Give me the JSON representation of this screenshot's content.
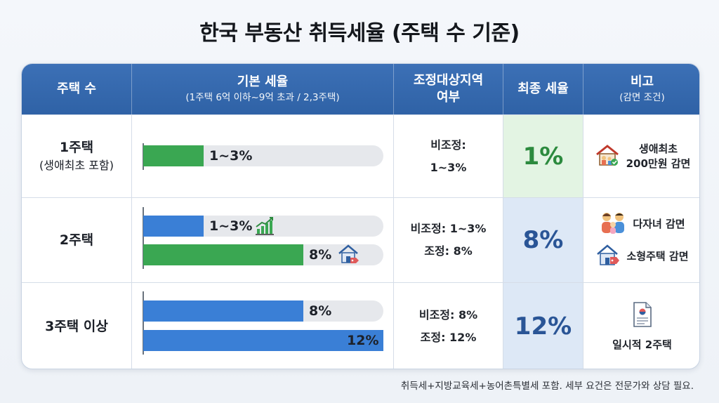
{
  "title": "한국 부동산 취득세율 (주택 수 기준)",
  "header": {
    "col1": "주택 수",
    "col2_main": "기본 세율",
    "col2_sub": "(1주택 6억 이하~9억 초과 / 2,3주택)",
    "col3_line1": "조정대상지역",
    "col3_line2": "여부",
    "col4": "최종 세율",
    "col5_main": "비고",
    "col5_sub": "(감면 조건)"
  },
  "rows": [
    {
      "label": "1주택",
      "sublabel": "(생애최초 포함)",
      "adj_line1": "비조정:",
      "adj_line2": "1~3%",
      "final": "1%",
      "notes": [
        "생애최초\n200만원 감면"
      ],
      "note_line1": "생애최초",
      "note_line2": "200만원 감면"
    },
    {
      "label": "2주택",
      "adj_line1": "비조정: 1~3%",
      "adj_line2": "조정: 8%",
      "final": "8%",
      "note1": "다자녀 감면",
      "note2": "소형주택 감면"
    },
    {
      "label": "3주택 이상",
      "adj_line1": "비조정: 8%",
      "adj_line2": "조정: 12%",
      "final": "12%",
      "note1": "일시적 2주택"
    }
  ],
  "chart_data": {
    "type": "bar",
    "orientation": "horizontal",
    "title": "",
    "xlim": [
      0,
      12
    ],
    "groups": [
      {
        "category": "1주택",
        "bars": [
          {
            "label": "1~3%",
            "value": 3,
            "color": "#3aa752"
          }
        ]
      },
      {
        "category": "2주택",
        "bars": [
          {
            "label": "1~3%",
            "value": 3,
            "color": "#3a7fd6"
          },
          {
            "label": "8%",
            "value": 8,
            "color": "#3aa752"
          }
        ]
      },
      {
        "category": "3주택 이상",
        "bars": [
          {
            "label": "8%",
            "value": 8,
            "color": "#3a7fd6"
          },
          {
            "label": "12%",
            "value": 12,
            "color": "#3a7fd6"
          }
        ]
      }
    ]
  },
  "colors": {
    "header_blue": "#3c70b6",
    "green": "#3aa752",
    "blue": "#3a7fd6",
    "final_green_bg": "#e3f4e3",
    "final_blue_bg": "#dde8f6"
  },
  "icons": {
    "row1_bar": "",
    "row2_bar1": "growth-chart-icon",
    "row2_bar2": "house-tag-icon",
    "row1_note": "family-house-icon",
    "row2_note1": "family-icon",
    "row2_note2": "small-house-icon",
    "row3_note": "document-icon"
  },
  "footnote": "취득세+지방교육세+농어촌특별세 포함. 세부 요건은 전문가와 상담 필요."
}
